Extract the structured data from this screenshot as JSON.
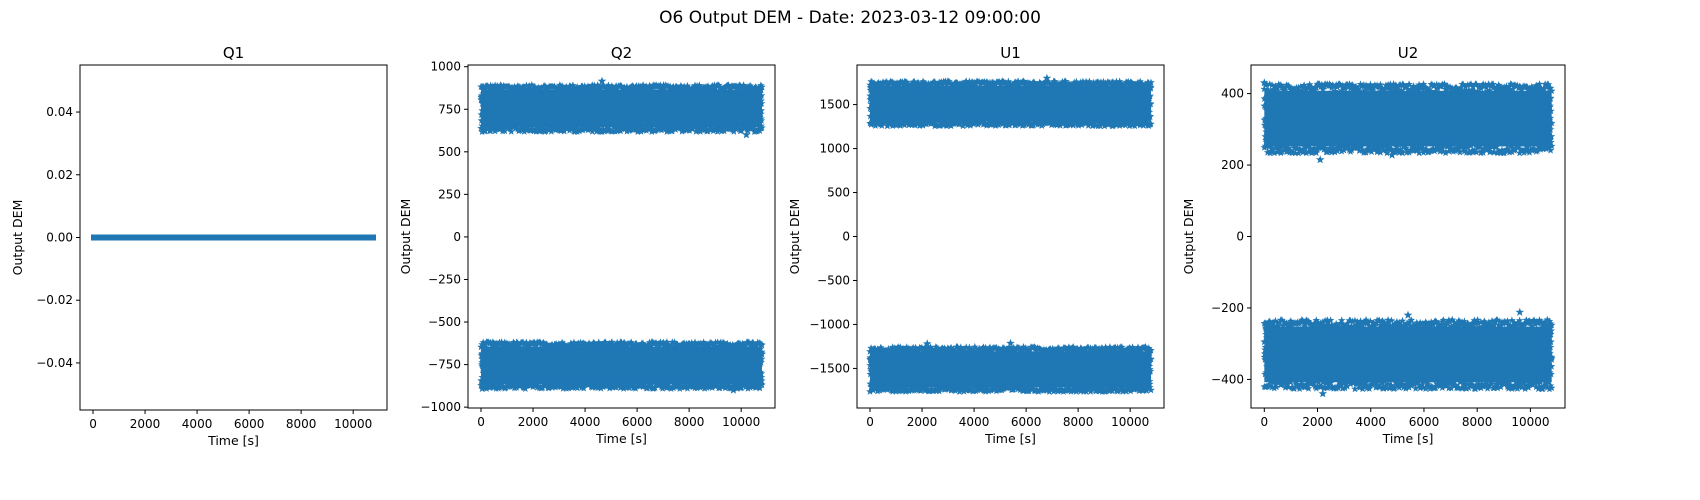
{
  "figure_title": "O6 Output DEM - Date: 2023-03-12 09:00:00",
  "colors": {
    "series": "#1f77b4",
    "axes": "#000000",
    "background": "#ffffff"
  },
  "chart_data": [
    {
      "type": "scatter",
      "title": "Q1",
      "xlabel": "Time [s]",
      "ylabel": "Output DEM",
      "xlim": [
        -500,
        11300
      ],
      "ylim": [
        -0.055,
        0.055
      ],
      "xticks": [
        0,
        2000,
        4000,
        6000,
        8000,
        10000
      ],
      "xtick_labels": [
        "0",
        "2000",
        "4000",
        "6000",
        "8000",
        "10000"
      ],
      "yticks": [
        -0.04,
        -0.02,
        0.0,
        0.02,
        0.04
      ],
      "ytick_labels": [
        "−0.04",
        "−0.02",
        "0.00",
        "0.02",
        "0.04"
      ],
      "marker": "star",
      "grid": false,
      "series": [
        {
          "x_range": [
            0,
            10800
          ],
          "bands": [
            {
              "center": 0.0,
              "half_width": 0.0
            }
          ]
        }
      ]
    },
    {
      "type": "scatter",
      "title": "Q2",
      "xlabel": "Time [s]",
      "ylabel": "Output DEM",
      "xlim": [
        -500,
        11300
      ],
      "ylim": [
        -1005,
        1010
      ],
      "xticks": [
        0,
        2000,
        4000,
        6000,
        8000,
        10000
      ],
      "xtick_labels": [
        "0",
        "2000",
        "4000",
        "6000",
        "8000",
        "10000"
      ],
      "yticks": [
        -1000,
        -750,
        -500,
        -250,
        0,
        250,
        500,
        750,
        1000
      ],
      "ytick_labels": [
        "−1000",
        "−750",
        "−500",
        "−250",
        "0",
        "250",
        "500",
        "750",
        "1000"
      ],
      "marker": "star",
      "grid": false,
      "series": [
        {
          "x_range": [
            0,
            10800
          ],
          "bands": [
            {
              "center": 755,
              "half_width": 135
            },
            {
              "center": -755,
              "half_width": 135
            }
          ],
          "outliers": [
            {
              "x": 4650,
              "y": 915
            },
            {
              "x": 10200,
              "y": 600
            },
            {
              "x": 9700,
              "y": -900
            }
          ]
        }
      ]
    },
    {
      "type": "scatter",
      "title": "U1",
      "xlabel": "Time [s]",
      "ylabel": "Output DEM",
      "xlim": [
        -500,
        11300
      ],
      "ylim": [
        -1950,
        1950
      ],
      "xticks": [
        0,
        2000,
        4000,
        6000,
        8000,
        10000
      ],
      "xtick_labels": [
        "0",
        "2000",
        "4000",
        "6000",
        "8000",
        "10000"
      ],
      "yticks": [
        -1500,
        -1000,
        -500,
        0,
        500,
        1000,
        1500
      ],
      "ytick_labels": [
        "−1500",
        "−1000",
        "−500",
        "0",
        "500",
        "1000",
        "1500"
      ],
      "marker": "star",
      "grid": false,
      "series": [
        {
          "x_range": [
            0,
            10800
          ],
          "bands": [
            {
              "center": 1510,
              "half_width": 250
            },
            {
              "center": -1510,
              "half_width": 250
            }
          ],
          "outliers": [
            {
              "x": 2200,
              "y": -1220
            },
            {
              "x": 5400,
              "y": -1215
            },
            {
              "x": 6800,
              "y": 1800
            }
          ]
        }
      ]
    },
    {
      "type": "scatter",
      "title": "U2",
      "xlabel": "Time [s]",
      "ylabel": "Output DEM",
      "xlim": [
        -500,
        11300
      ],
      "ylim": [
        -480,
        480
      ],
      "xticks": [
        0,
        2000,
        4000,
        6000,
        8000,
        10000
      ],
      "xtick_labels": [
        "0",
        "2000",
        "4000",
        "6000",
        "8000",
        "10000"
      ],
      "yticks": [
        -400,
        -200,
        0,
        200,
        400
      ],
      "ytick_labels": [
        "−400",
        "−200",
        "0",
        "200",
        "400"
      ],
      "marker": "star",
      "grid": false,
      "series": [
        {
          "x_range": [
            0,
            10800
          ],
          "bands": [
            {
              "center": 330,
              "half_width": 95
            },
            {
              "center": -330,
              "half_width": 95
            }
          ],
          "outliers": [
            {
              "x": 2100,
              "y": 215
            },
            {
              "x": 4800,
              "y": 228
            },
            {
              "x": 0,
              "y": 430
            },
            {
              "x": 5400,
              "y": -220
            },
            {
              "x": 9600,
              "y": -212
            },
            {
              "x": 2200,
              "y": -440
            }
          ]
        }
      ]
    }
  ]
}
